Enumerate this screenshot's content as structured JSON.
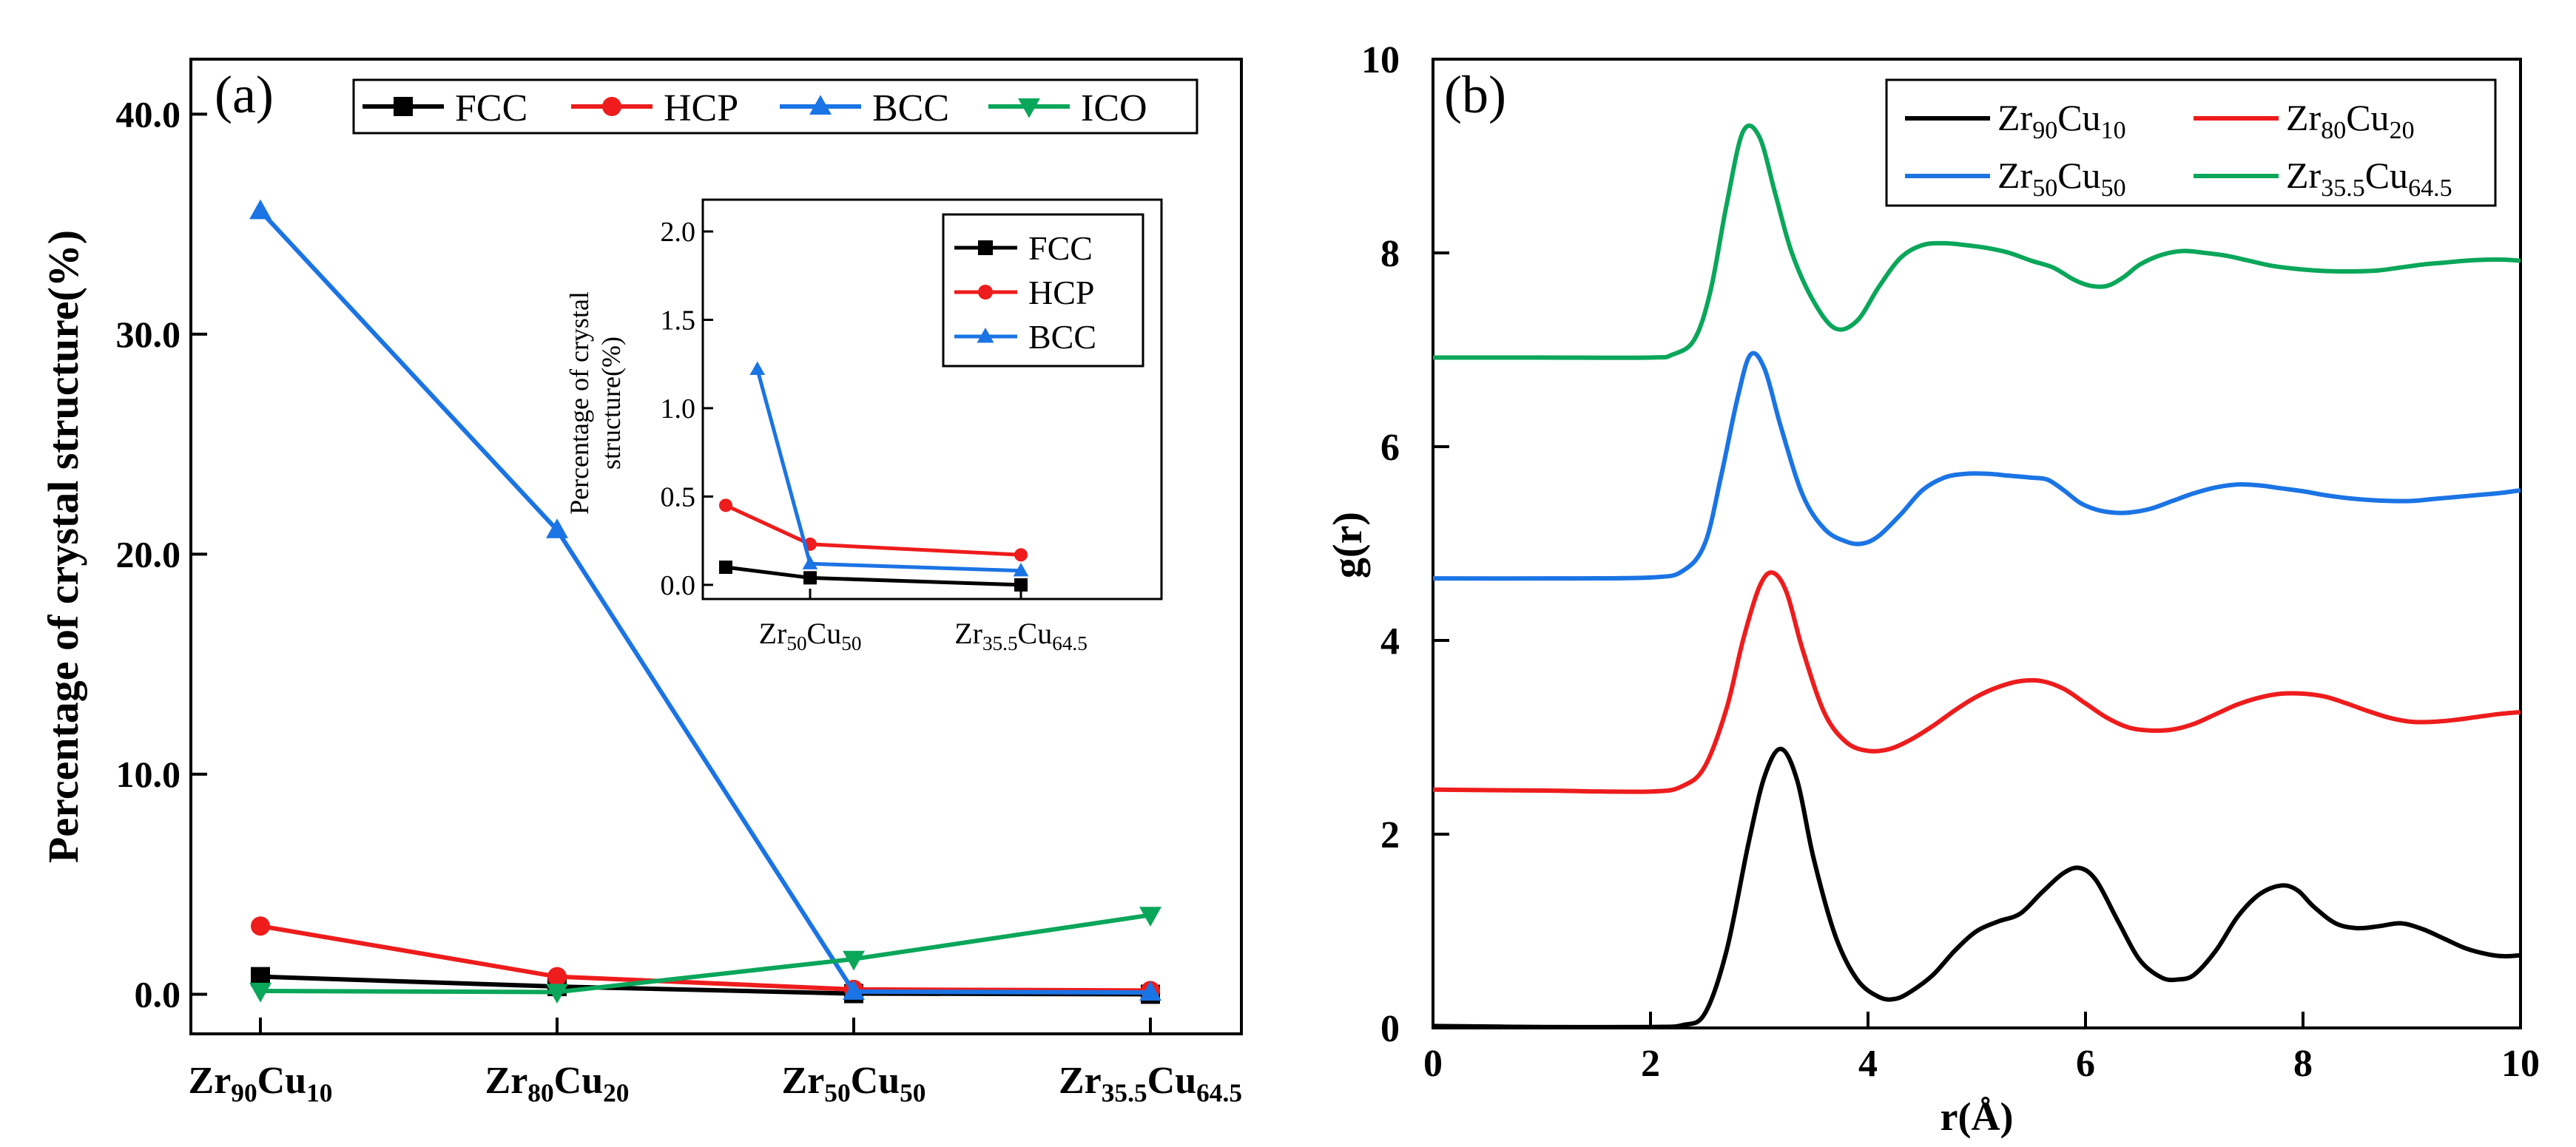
{
  "chart_data": [
    {
      "type": "line",
      "panel_label": "(a)",
      "ylabel": "Percentage of crystal structure(%)",
      "xlabel": "",
      "categories": [
        {
          "base": "Zr",
          "n1": "90",
          "mid": "Cu",
          "n2": "10"
        },
        {
          "base": "Zr",
          "n1": "80",
          "mid": "Cu",
          "n2": "20"
        },
        {
          "base": "Zr",
          "n1": "50",
          "mid": "Cu",
          "n2": "50"
        },
        {
          "base": "Zr",
          "n1": "35.5",
          "mid": "Cu",
          "n2": "64.5"
        }
      ],
      "ylim": [
        -1.8,
        42.5
      ],
      "yticks": [
        0,
        10,
        20,
        30,
        40
      ],
      "ytick_labels": [
        "0.0",
        "10.0",
        "20.0",
        "30.0",
        "40.0"
      ],
      "legend": {
        "placement": "top",
        "ncols": 4
      },
      "series": [
        {
          "name": "FCC",
          "color": "#000000",
          "marker": "square",
          "values": [
            0.8,
            0.35,
            0.03,
            0.0
          ]
        },
        {
          "name": "HCP",
          "color": "#ee1c1c",
          "marker": "circle",
          "values": [
            3.1,
            0.8,
            0.22,
            0.17
          ]
        },
        {
          "name": "BCC",
          "color": "#1b74e4",
          "marker": "triangle-up",
          "values": [
            35.6,
            21.1,
            0.12,
            0.08
          ]
        },
        {
          "name": "ICO",
          "color": "#0aa65a",
          "marker": "triangle-down",
          "values": [
            0.15,
            0.1,
            1.6,
            3.6
          ]
        }
      ],
      "inset": {
        "ylabel_lines": [
          "Percentage of crystal",
          "structure(%)"
        ],
        "categories": [
          {
            "base": "Zr",
            "n1": "50",
            "mid": "Cu",
            "n2": "50"
          },
          {
            "base": "Zr",
            "n1": "35.5",
            "mid": "Cu",
            "n2": "64.5"
          }
        ],
        "ylim": [
          -0.08,
          2.18
        ],
        "yticks": [
          0,
          0.5,
          1.0,
          1.5,
          2.0
        ],
        "ytick_labels": [
          "0.0",
          "0.5",
          "1.0",
          "1.5",
          "2.0"
        ],
        "legend": {
          "placement": "top-right"
        },
        "series": [
          {
            "name": "FCC",
            "color": "#000000",
            "marker": "square",
            "x": [
              0.6,
              1.0,
              2.0
            ],
            "values": [
              0.1,
              0.04,
              0.0
            ]
          },
          {
            "name": "HCP",
            "color": "#ee1c1c",
            "marker": "circle",
            "x": [
              0.6,
              1.0,
              2.0
            ],
            "values": [
              0.45,
              0.23,
              0.17
            ]
          },
          {
            "name": "BCC",
            "color": "#1b74e4",
            "marker": "triangle-up",
            "x": [
              0.75,
              1.0,
              2.0
            ],
            "values": [
              1.22,
              0.12,
              0.08
            ]
          }
        ]
      }
    },
    {
      "type": "line",
      "panel_label": "(b)",
      "xlabel": "r(Å)",
      "ylabel": "g(r)",
      "xlim": [
        0,
        10
      ],
      "ylim": [
        0,
        10
      ],
      "xticks": [
        0,
        2,
        4,
        6,
        8,
        10
      ],
      "yticks": [
        0,
        2,
        4,
        6,
        8,
        10
      ],
      "legend": {
        "placement": "top-right",
        "ncols": 2
      },
      "series": [
        {
          "name": "Zr90Cu10",
          "label": {
            "base": "Zr",
            "n1": "90",
            "mid": "Cu",
            "n2": "10"
          },
          "color": "#000000",
          "x": [
            0,
            1.0,
            2.0,
            2.3,
            2.5,
            2.7,
            2.9,
            3.05,
            3.2,
            3.35,
            3.5,
            3.7,
            3.9,
            4.1,
            4.25,
            4.4,
            4.6,
            4.8,
            5.0,
            5.2,
            5.4,
            5.6,
            5.8,
            5.95,
            6.1,
            6.3,
            6.5,
            6.7,
            6.85,
            7.0,
            7.2,
            7.4,
            7.6,
            7.8,
            7.95,
            8.1,
            8.3,
            8.5,
            8.7,
            8.9,
            9.1,
            9.3,
            9.5,
            9.7,
            9.85,
            10.0
          ],
          "values": [
            0.02,
            0.01,
            0.01,
            0.03,
            0.15,
            0.8,
            1.9,
            2.6,
            2.88,
            2.55,
            1.75,
            0.95,
            0.5,
            0.32,
            0.3,
            0.38,
            0.55,
            0.8,
            1.0,
            1.1,
            1.18,
            1.4,
            1.6,
            1.65,
            1.52,
            1.1,
            0.7,
            0.52,
            0.5,
            0.55,
            0.8,
            1.15,
            1.38,
            1.47,
            1.42,
            1.25,
            1.08,
            1.03,
            1.05,
            1.08,
            1.02,
            0.92,
            0.82,
            0.76,
            0.74,
            0.75
          ]
        },
        {
          "name": "Zr80Cu20",
          "label": {
            "base": "Zr",
            "n1": "80",
            "mid": "Cu",
            "n2": "20"
          },
          "color": "#ee1c1c",
          "x": [
            0,
            1.0,
            2.0,
            2.3,
            2.5,
            2.7,
            2.85,
            3.0,
            3.12,
            3.25,
            3.4,
            3.6,
            3.8,
            4.0,
            4.2,
            4.4,
            4.6,
            4.8,
            5.0,
            5.2,
            5.4,
            5.6,
            5.8,
            6.0,
            6.2,
            6.4,
            6.6,
            6.8,
            7.0,
            7.2,
            7.4,
            7.6,
            7.8,
            8.0,
            8.2,
            8.4,
            8.6,
            8.8,
            9.0,
            9.2,
            9.4,
            9.6,
            9.8,
            10.0
          ],
          "values": [
            2.46,
            2.45,
            2.44,
            2.5,
            2.7,
            3.3,
            4.0,
            4.55,
            4.7,
            4.5,
            3.9,
            3.25,
            2.95,
            2.86,
            2.88,
            2.98,
            3.12,
            3.28,
            3.42,
            3.52,
            3.58,
            3.58,
            3.5,
            3.35,
            3.2,
            3.1,
            3.07,
            3.08,
            3.14,
            3.24,
            3.34,
            3.41,
            3.45,
            3.45,
            3.42,
            3.35,
            3.27,
            3.2,
            3.16,
            3.16,
            3.18,
            3.21,
            3.24,
            3.26
          ]
        },
        {
          "name": "Zr50Cu50",
          "label": {
            "base": "Zr",
            "n1": "50",
            "mid": "Cu",
            "n2": "50"
          },
          "color": "#1b74e4",
          "x": [
            0,
            1.0,
            2.0,
            2.3,
            2.5,
            2.65,
            2.8,
            2.92,
            3.05,
            3.2,
            3.4,
            3.6,
            3.8,
            3.95,
            4.1,
            4.3,
            4.5,
            4.7,
            4.9,
            5.1,
            5.3,
            5.5,
            5.65,
            5.8,
            5.95,
            6.1,
            6.25,
            6.4,
            6.6,
            6.8,
            7.0,
            7.2,
            7.4,
            7.6,
            7.8,
            8.0,
            8.2,
            8.4,
            8.6,
            8.8,
            9.0,
            9.2,
            9.4,
            9.6,
            9.8,
            10.0
          ],
          "values": [
            4.64,
            4.64,
            4.65,
            4.72,
            5.0,
            5.7,
            6.5,
            6.95,
            6.8,
            6.2,
            5.5,
            5.15,
            5.02,
            5.0,
            5.08,
            5.3,
            5.55,
            5.68,
            5.72,
            5.72,
            5.7,
            5.68,
            5.66,
            5.55,
            5.42,
            5.35,
            5.32,
            5.32,
            5.36,
            5.44,
            5.52,
            5.58,
            5.61,
            5.6,
            5.57,
            5.54,
            5.5,
            5.47,
            5.45,
            5.44,
            5.44,
            5.46,
            5.48,
            5.5,
            5.52,
            5.55
          ]
        },
        {
          "name": "Zr35.5Cu64.5",
          "label": {
            "base": "Zr",
            "n1": "35.5",
            "mid": "Cu",
            "n2": "64.5"
          },
          "color": "#0aa65a",
          "x": [
            0,
            1.0,
            2.0,
            2.2,
            2.4,
            2.55,
            2.7,
            2.85,
            3.0,
            3.15,
            3.3,
            3.5,
            3.7,
            3.9,
            4.1,
            4.3,
            4.5,
            4.7,
            4.9,
            5.1,
            5.3,
            5.5,
            5.7,
            5.9,
            6.05,
            6.2,
            6.35,
            6.5,
            6.7,
            6.9,
            7.1,
            7.3,
            7.5,
            7.7,
            7.9,
            8.1,
            8.3,
            8.5,
            8.7,
            8.9,
            9.1,
            9.3,
            9.5,
            9.7,
            9.85,
            10.0
          ],
          "values": [
            6.92,
            6.92,
            6.92,
            6.95,
            7.1,
            7.6,
            8.5,
            9.25,
            9.2,
            8.6,
            8.0,
            7.5,
            7.22,
            7.3,
            7.65,
            7.95,
            8.08,
            8.1,
            8.08,
            8.05,
            8.0,
            7.92,
            7.85,
            7.72,
            7.66,
            7.66,
            7.75,
            7.88,
            7.98,
            8.02,
            8.0,
            7.97,
            7.92,
            7.87,
            7.84,
            7.82,
            7.81,
            7.81,
            7.82,
            7.85,
            7.88,
            7.9,
            7.92,
            7.93,
            7.93,
            7.92
          ]
        }
      ]
    }
  ]
}
